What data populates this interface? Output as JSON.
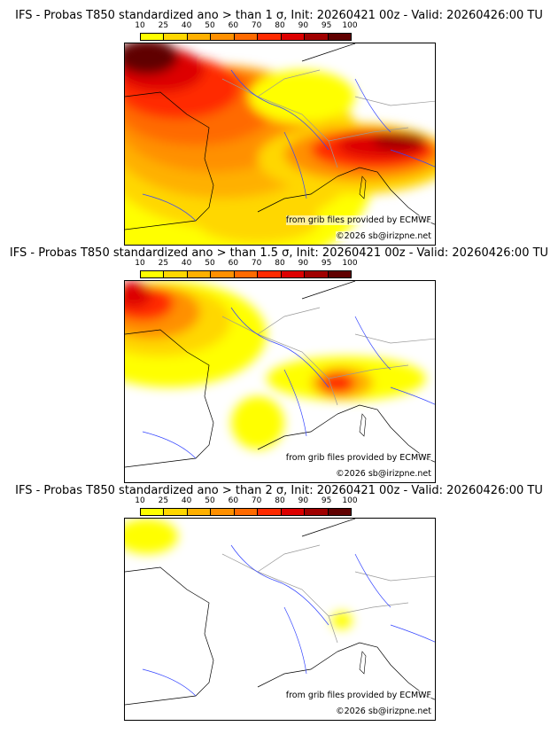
{
  "panels": [
    {
      "title": "IFS - Probas T850  standardized ano > than 1 σ, Init: 20260421 00z - Valid: 20260426:00 TU",
      "level": "1"
    },
    {
      "title": "IFS - Probas T850  standardized ano > than 1.5 σ, Init: 20260421 00z - Valid: 20260426:00 TU",
      "level": "1.5"
    },
    {
      "title": "IFS - Probas T850  standardized ano > than 2 σ, Init: 20260421 00z - Valid: 20260426:00 TU",
      "level": "2"
    }
  ],
  "colorbar": {
    "ticks": [
      "10",
      "25",
      "40",
      "50",
      "60",
      "70",
      "80",
      "90",
      "95",
      "100"
    ],
    "colors": [
      "#ffff00",
      "#ffd700",
      "#ffb000",
      "#ff9000",
      "#ff6a00",
      "#ff2a00",
      "#dd0000",
      "#a00000",
      "#600000"
    ]
  },
  "credits": {
    "source": "from grib files provided by ECMWF",
    "copyright": "©2026 sb@irizpne.net"
  }
}
